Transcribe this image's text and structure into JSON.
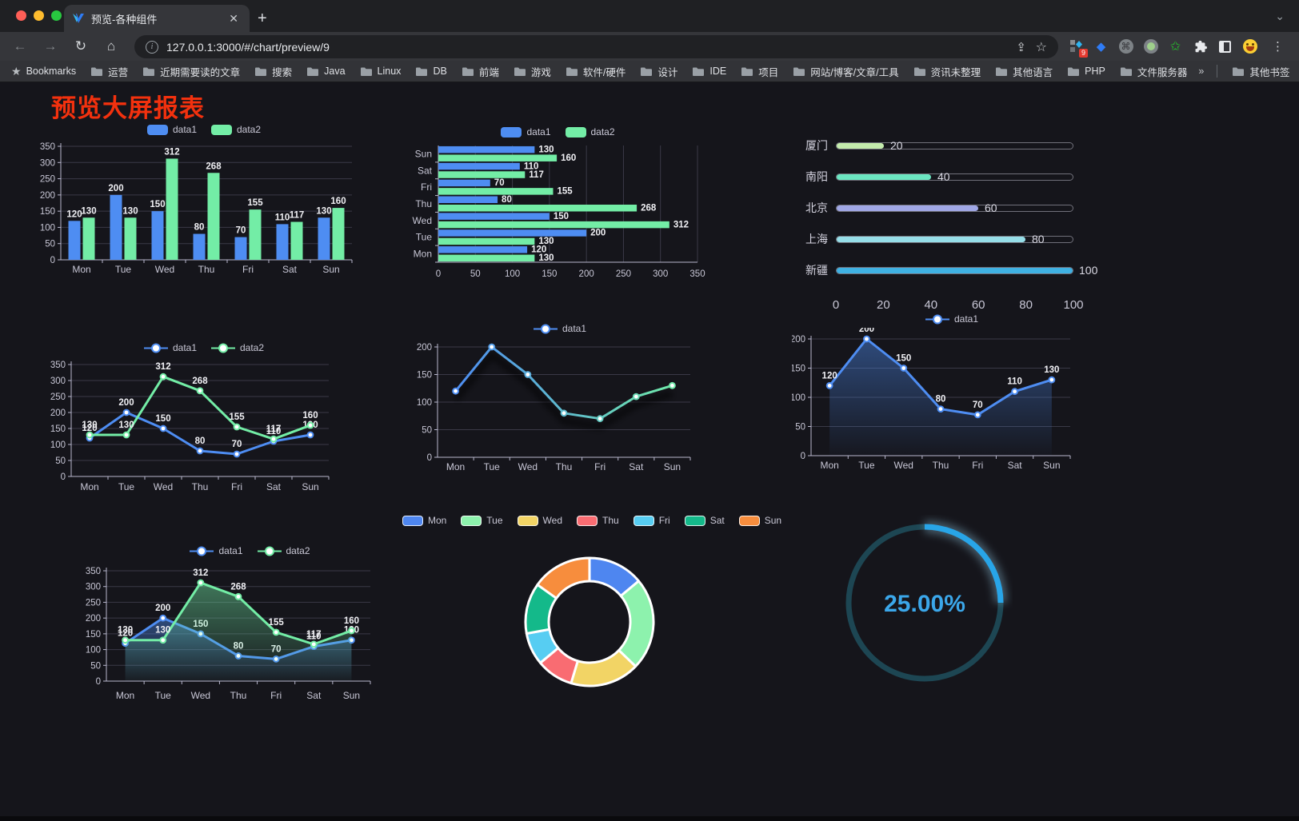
{
  "browser": {
    "tab_title": "预览-各种组件",
    "new_tab": "+",
    "close_tab": "✕",
    "url": "127.0.0.1:3000/#/chart/preview/9",
    "extension_badge": "9",
    "bookmarks_label": "Bookmarks",
    "bookmarks": [
      "运营",
      "近期需要读的文章",
      "搜索",
      "Java",
      "Linux",
      "DB",
      "前端",
      "游戏",
      "软件/硬件",
      "设计",
      "IDE",
      "项目",
      "网站/博客/文章/工具",
      "资讯未整理",
      "其他语言",
      "PHP",
      "文件服务器"
    ],
    "bookmarks_overflow": "»",
    "other_bookmarks": "其他书签"
  },
  "page": {
    "title": "预览大屏报表",
    "title_color": "#f3310e",
    "background": "#15151b"
  },
  "palette": {
    "data1": "#4e8df2",
    "data2": "#73eda6",
    "axis_label": "#c8c7d6",
    "grid": "#3a3947",
    "axis_line": "#b9b8ce",
    "value_label": "#f0f0f4"
  },
  "chart_data": [
    {
      "id": "c1",
      "type": "bar",
      "legend_pos": "top",
      "categories": [
        "Mon",
        "Tue",
        "Wed",
        "Thu",
        "Fri",
        "Sat",
        "Sun"
      ],
      "series": [
        {
          "name": "data1",
          "color": "#4e8df2",
          "values": [
            120,
            200,
            150,
            80,
            70,
            110,
            130
          ]
        },
        {
          "name": "data2",
          "color": "#73eda6",
          "values": [
            130,
            130,
            312,
            268,
            155,
            117,
            160
          ]
        }
      ],
      "ylim": [
        0,
        350
      ],
      "yticks": [
        0,
        50,
        100,
        150,
        200,
        250,
        300,
        350
      ],
      "grid": true,
      "value_labels": true
    },
    {
      "id": "c2",
      "type": "bar-horizontal",
      "legend_pos": "top",
      "categories": [
        "Mon",
        "Tue",
        "Wed",
        "Thu",
        "Fri",
        "Sat",
        "Sun"
      ],
      "display_order_top_to_bottom": [
        "Sun",
        "Sat",
        "Fri",
        "Thu",
        "Wed",
        "Tue",
        "Mon"
      ],
      "series": [
        {
          "name": "data1",
          "color": "#4e8df2",
          "values": [
            120,
            200,
            150,
            80,
            70,
            110,
            130
          ]
        },
        {
          "name": "data2",
          "color": "#73eda6",
          "values": [
            130,
            130,
            312,
            268,
            155,
            117,
            160
          ]
        }
      ],
      "xlim": [
        0,
        350
      ],
      "xticks": [
        0,
        50,
        100,
        150,
        200,
        250,
        300,
        350
      ],
      "grid": true,
      "value_labels": true
    },
    {
      "id": "c3",
      "type": "progress-bars",
      "max": 100,
      "axis_ticks": [
        0,
        20,
        40,
        60,
        80,
        100
      ],
      "items": [
        {
          "label": "厦门",
          "value": 20,
          "color": "#c4ebad"
        },
        {
          "label": "南阳",
          "value": 40,
          "color": "#6be6c1"
        },
        {
          "label": "北京",
          "value": 60,
          "color": "#a0a7e6"
        },
        {
          "label": "上海",
          "value": 80,
          "color": "#96dee8"
        },
        {
          "label": "新疆",
          "value": 100,
          "color": "#3fb1e3"
        }
      ]
    },
    {
      "id": "c4",
      "type": "line",
      "legend_pos": "top",
      "categories": [
        "Mon",
        "Tue",
        "Wed",
        "Thu",
        "Fri",
        "Sat",
        "Sun"
      ],
      "series": [
        {
          "name": "data1",
          "color": "#4e8df2",
          "values": [
            120,
            200,
            150,
            80,
            70,
            110,
            130
          ]
        },
        {
          "name": "data2",
          "color": "#73eda6",
          "values": [
            130,
            130,
            312,
            268,
            155,
            117,
            160
          ]
        }
      ],
      "ylim": [
        0,
        350
      ],
      "yticks": [
        0,
        50,
        100,
        150,
        200,
        250,
        300,
        350
      ],
      "value_labels": true
    },
    {
      "id": "c5",
      "type": "line",
      "legend_pos": "top",
      "categories": [
        "Mon",
        "Tue",
        "Wed",
        "Thu",
        "Fri",
        "Sat",
        "Sun"
      ],
      "series": [
        {
          "name": "data1",
          "gradient": [
            "#4e8df2",
            "#6fe8a9"
          ],
          "color": "#4e8df2",
          "values": [
            120,
            200,
            150,
            80,
            70,
            110,
            130
          ],
          "shadow": true
        }
      ],
      "ylim": [
        0,
        200
      ],
      "yticks": [
        0,
        50,
        100,
        150,
        200
      ],
      "value_labels": false
    },
    {
      "id": "c6",
      "type": "area",
      "legend_pos": "top",
      "categories": [
        "Mon",
        "Tue",
        "Wed",
        "Thu",
        "Fri",
        "Sat",
        "Sun"
      ],
      "series": [
        {
          "name": "data1",
          "color": "#4e8df2",
          "values": [
            120,
            200,
            150,
            80,
            70,
            110,
            130
          ],
          "area": true
        }
      ],
      "ylim": [
        0,
        200
      ],
      "yticks": [
        0,
        50,
        100,
        150,
        200
      ],
      "value_labels": true
    },
    {
      "id": "c7",
      "type": "area",
      "legend_pos": "top",
      "categories": [
        "Mon",
        "Tue",
        "Wed",
        "Thu",
        "Fri",
        "Sat",
        "Sun"
      ],
      "series": [
        {
          "name": "data1",
          "color": "#4e8df2",
          "values": [
            120,
            200,
            150,
            80,
            70,
            110,
            130
          ],
          "area": true
        },
        {
          "name": "data2",
          "color": "#73eda6",
          "values": [
            130,
            130,
            312,
            268,
            155,
            117,
            160
          ],
          "area": true
        }
      ],
      "ylim": [
        0,
        350
      ],
      "yticks": [
        0,
        50,
        100,
        150,
        200,
        250,
        300,
        350
      ],
      "value_labels": true
    },
    {
      "id": "c8",
      "type": "pie",
      "legend_pos": "top",
      "donut": true,
      "categories": [
        "Mon",
        "Tue",
        "Wed",
        "Thu",
        "Fri",
        "Sat",
        "Sun"
      ],
      "values": [
        120,
        200,
        150,
        80,
        70,
        110,
        130
      ],
      "colors": [
        "#4e86f0",
        "#8df2ad",
        "#f2d465",
        "#f96c72",
        "#57cdf2",
        "#14b98a",
        "#f78d3d"
      ]
    },
    {
      "id": "c9",
      "type": "gauge",
      "label": "25.00%",
      "percent": 25,
      "color": "#28a5e8",
      "track_color": "#1d4653",
      "text_color": "#3ba7ea"
    }
  ]
}
